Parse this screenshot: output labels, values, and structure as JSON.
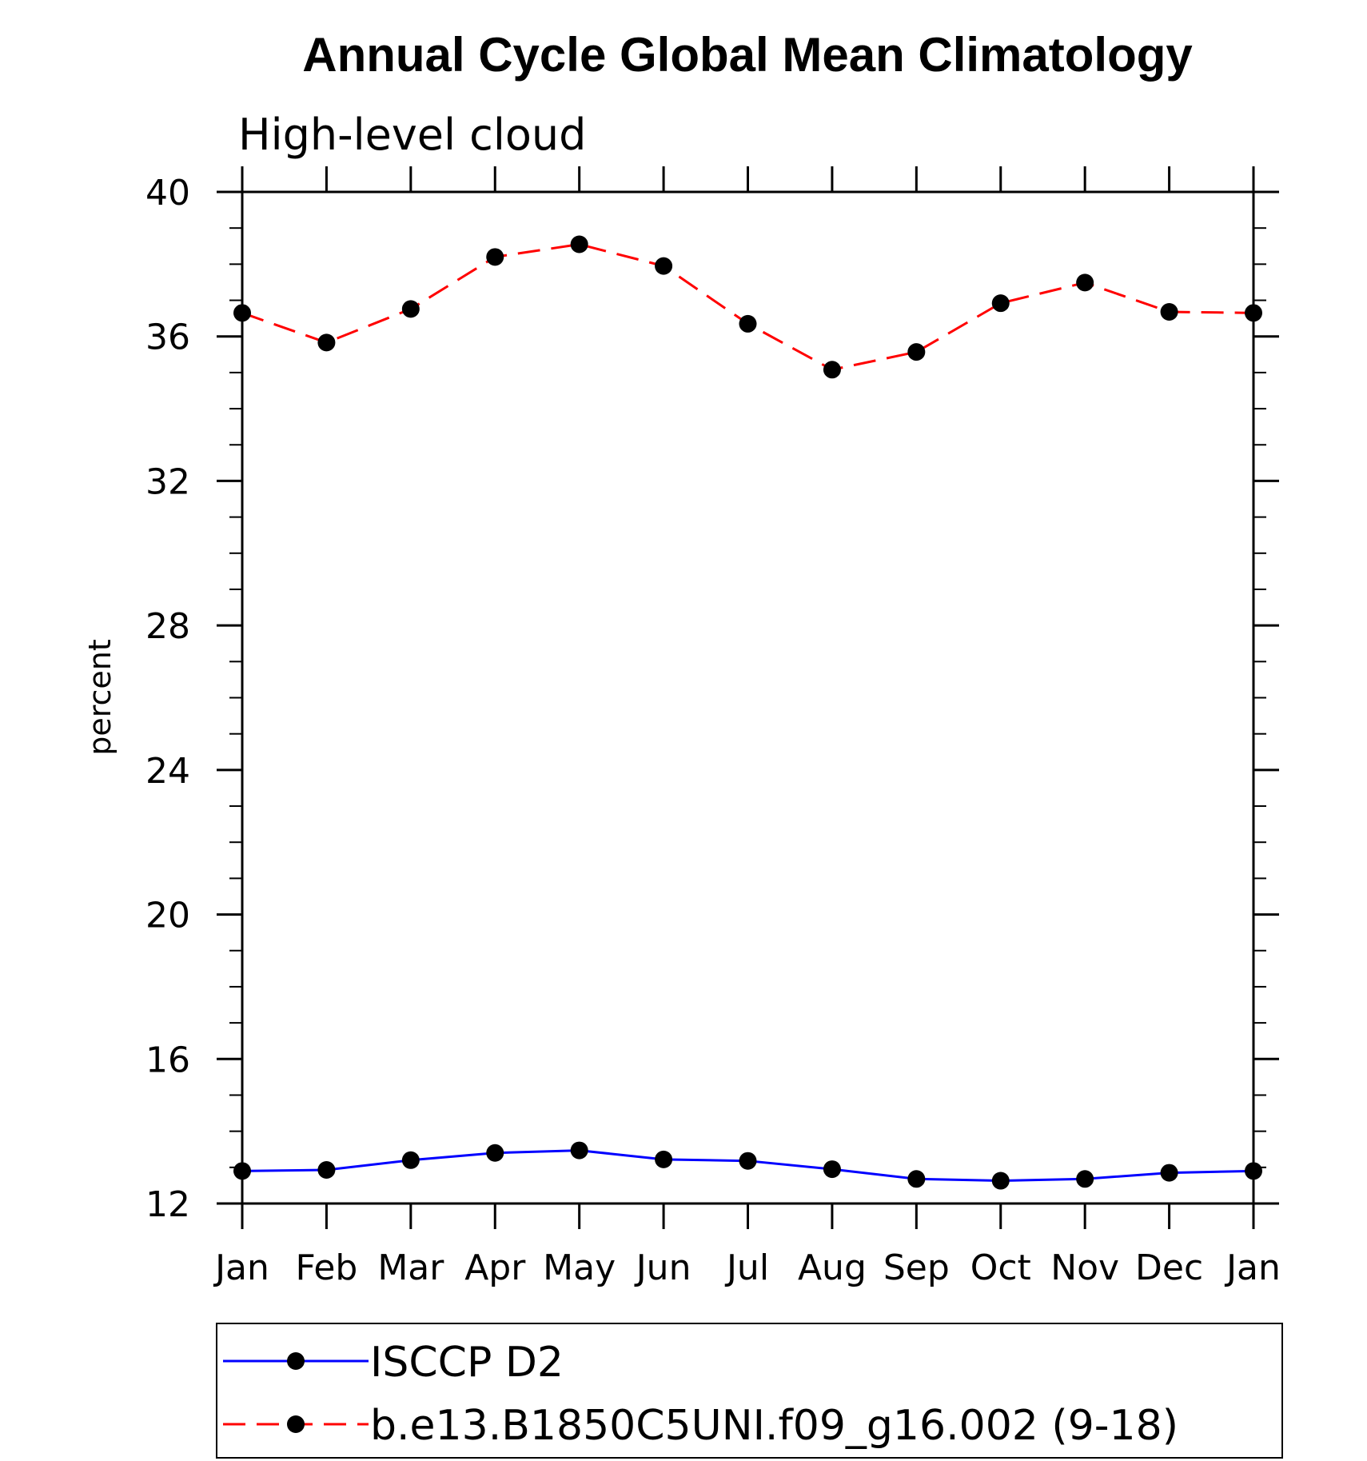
{
  "chart_data": {
    "type": "line",
    "title": "Annual Cycle Global Mean Climatology",
    "subtitle": "High-level cloud",
    "xlabel": "",
    "ylabel": "percent",
    "categories": [
      "Jan",
      "Feb",
      "Mar",
      "Apr",
      "May",
      "Jun",
      "Jul",
      "Aug",
      "Sep",
      "Oct",
      "Nov",
      "Dec",
      "Jan"
    ],
    "ylim": [
      12,
      40
    ],
    "yticks": [
      "12",
      "16",
      "20",
      "24",
      "28",
      "32",
      "36",
      "40"
    ],
    "grid": false,
    "legend_position": "bottom",
    "series": [
      {
        "name": "ISCCP D2",
        "color": "#0000ff",
        "line_style": "solid",
        "marker": "filled-circle",
        "values": [
          12.9,
          12.93,
          13.2,
          13.4,
          13.47,
          13.22,
          13.18,
          12.95,
          12.68,
          12.63,
          12.68,
          12.85,
          12.9
        ]
      },
      {
        "name": "b.e13.B1850C5UNI.f09_g16.002 (9-18)",
        "color": "#ff0000",
        "line_style": "dashed",
        "marker": "filled-circle",
        "values": [
          36.65,
          35.83,
          36.76,
          38.2,
          38.55,
          37.95,
          36.35,
          35.08,
          35.57,
          36.92,
          37.49,
          36.68,
          36.65
        ]
      }
    ]
  }
}
